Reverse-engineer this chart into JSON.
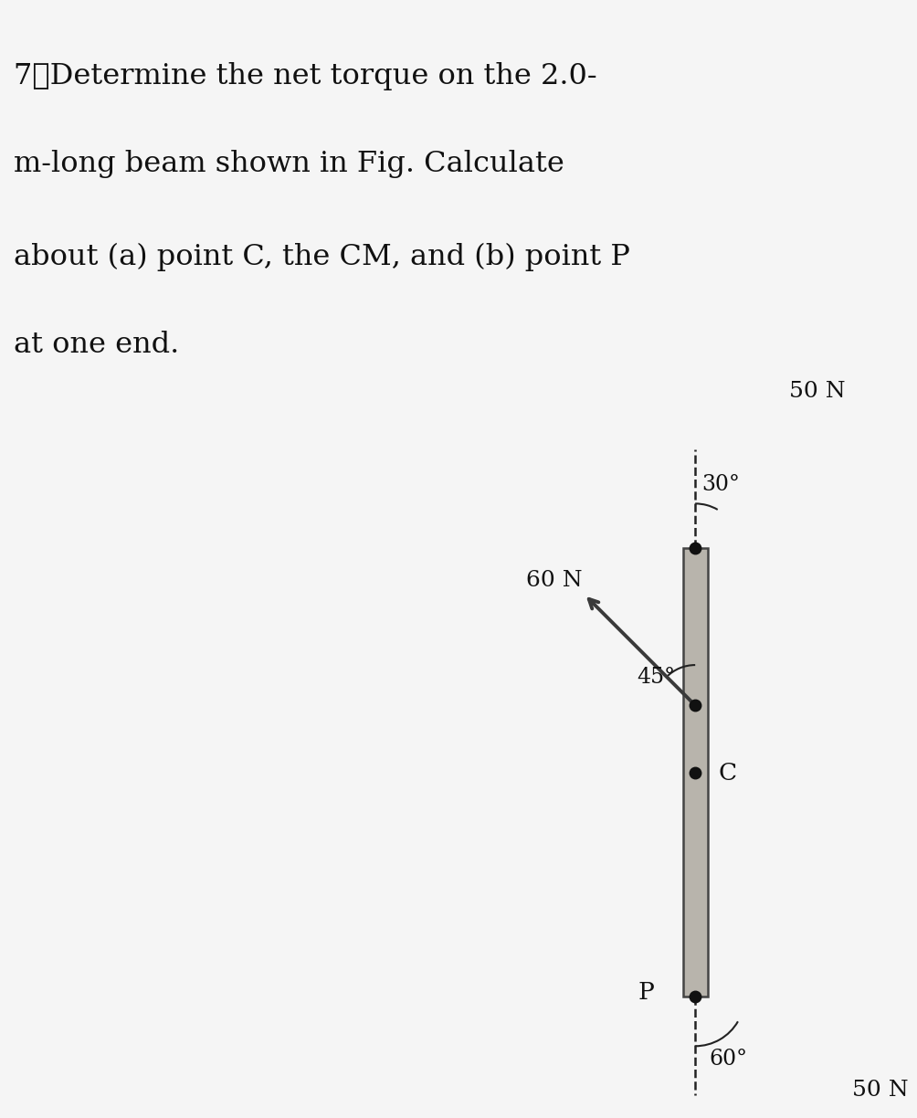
{
  "title_line1": "7、Determine the net torque on the 2.0-",
  "title_line2": "m-long beam shown in Fig. Calculate",
  "title_line3": "about (a) point C, the CM, and (b) point P",
  "title_line4": "at one end.",
  "title_fontsize": 23,
  "bg_color": "#f5f5f5",
  "diagram_bg": "#cdc9c0",
  "beam_fill": "#b8b4ac",
  "beam_border": "#444444",
  "arrow_color": "#3a3a3a",
  "dashed_color": "#222222",
  "dot_color": "#111111",
  "text_color": "#111111",
  "force1_label": "50 N",
  "force2_label": "60 N",
  "force3_label": "50 N",
  "label_C": "C",
  "label_P": "P",
  "angle1_label": "30°",
  "angle2_label": "45°",
  "angle3_label": "60°",
  "fontsize_labels": 19,
  "fontsize_angles": 17,
  "fontsize_forces": 18
}
